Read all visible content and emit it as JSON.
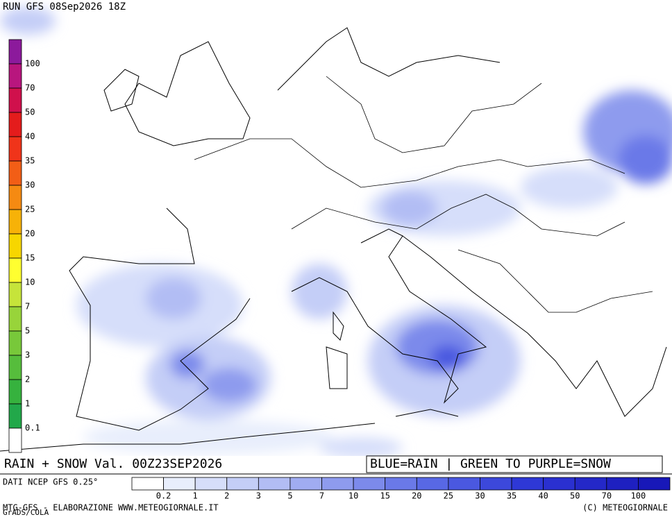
{
  "header": {
    "title": "RUN GFS 08Sep2026 18Z"
  },
  "snow_scale": {
    "labels": [
      "100",
      "70",
      "50",
      "40",
      "35",
      "30",
      "25",
      "20",
      "15",
      "10",
      "7",
      "5",
      "3",
      "2",
      "1",
      "0.1"
    ],
    "colors": [
      "#8c1a9c",
      "#b8167e",
      "#d0104c",
      "#e41c1c",
      "#f0341a",
      "#f25e16",
      "#f58a12",
      "#f7b208",
      "#f7d600",
      "#ffff30",
      "#c6e43a",
      "#98d43a",
      "#78c83a",
      "#56bd3c",
      "#36b23e",
      "#22a84a",
      "#ffffff"
    ]
  },
  "footer": {
    "left": "RAIN + SNOW Val. 00Z23SEP2026",
    "right": "BLUE=RAIN | GREEN TO PURPLE=SNOW",
    "source": "DATI NCEP GFS 0.25°",
    "credit": "MTG-GFS - ELABORAZIONE WWW.METEOGIORNALE.IT",
    "grads": "GrADS/COLA",
    "copyright": "(C) METEOGIORNALE"
  },
  "rain_scale": {
    "labels": [
      "0.2",
      "1",
      "2",
      "3",
      "5",
      "7",
      "10",
      "15",
      "20",
      "25",
      "30",
      "35",
      "40",
      "50",
      "70",
      "100"
    ],
    "colors": [
      "#ffffff",
      "#e8eefc",
      "#d6defa",
      "#c4cef7",
      "#b2bdf4",
      "#a0acf1",
      "#8e9bee",
      "#7c8aeb",
      "#6a79e8",
      "#5868e5",
      "#4a58e0",
      "#3c48db",
      "#2e38d6",
      "#2a30d0",
      "#2428c8",
      "#1e20c0",
      "#1818b8"
    ]
  }
}
